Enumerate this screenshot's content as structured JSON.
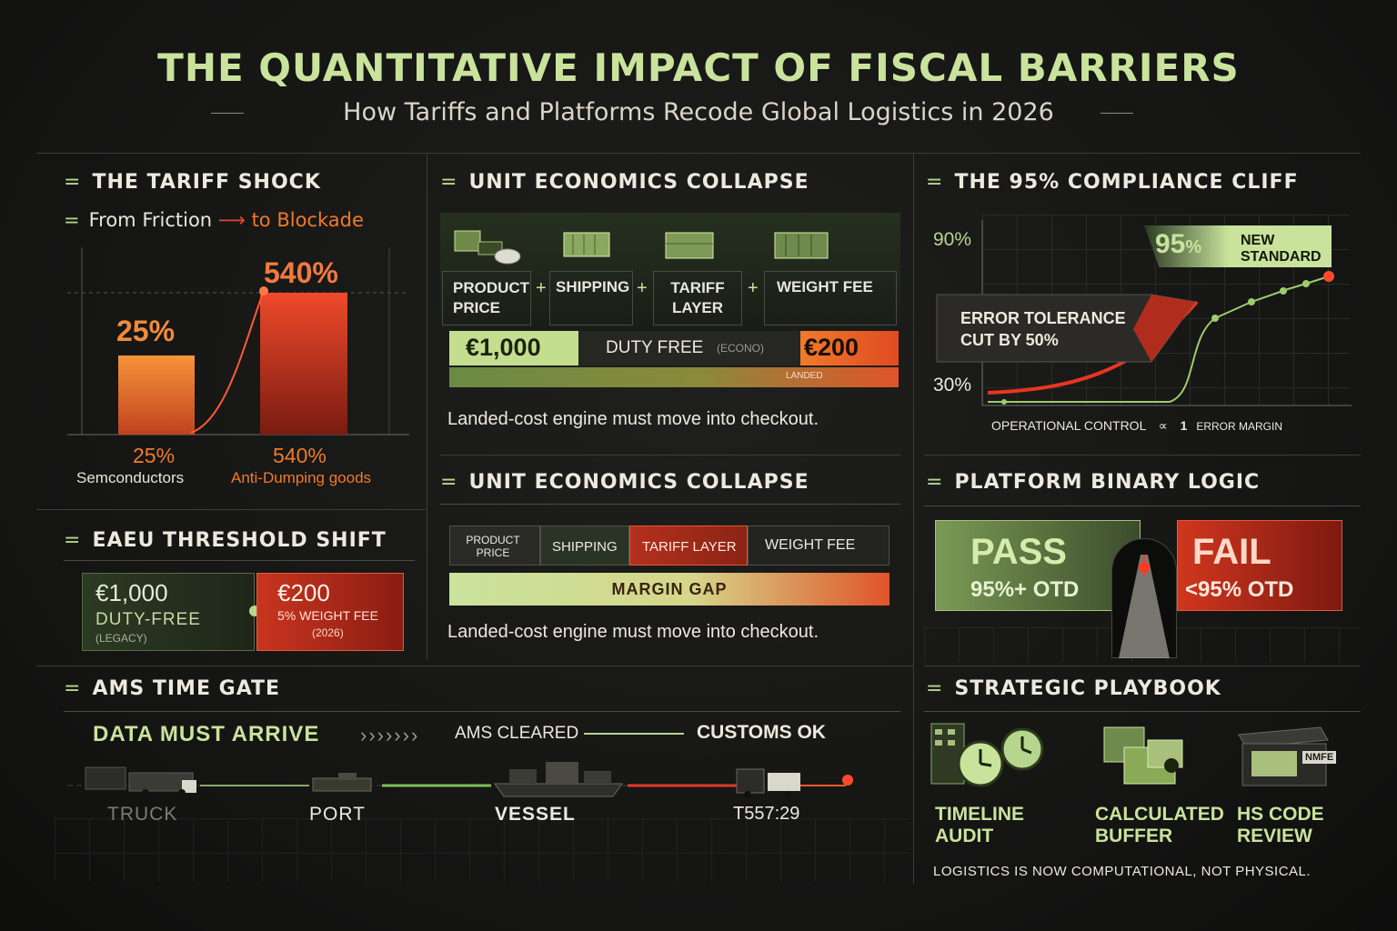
{
  "header": {
    "title": "THE QUANTITATIVE IMPACT OF FISCAL BARRIERS",
    "subtitle": "How Tariffs and Platforms Recode Global Logistics in 2026"
  },
  "tariff_shock": {
    "title": "THE TARIFF SHOCK",
    "subtitle_a": "From Friction",
    "subtitle_b": "to Blockade",
    "bar1_value": "25%",
    "bar2_value": "540%",
    "bar1_pct": 25,
    "bar2_pct": 540,
    "bar1_caption_value": "25%",
    "bar1_caption": "Semconductors",
    "bar2_caption_value": "540%",
    "bar2_caption": "Anti-Dumping goods"
  },
  "eaeu": {
    "title": "EAEU THRESHOLD SHIFT",
    "left_value": "€1,000",
    "left_label": "DUTY-FREE",
    "left_sub": "(LEGACY)",
    "right_value": "€200",
    "right_label": "5% WEIGHT FEE",
    "right_sub": "(2026)"
  },
  "unit_econ_1": {
    "title": "UNIT ECONOMICS COLLAPSE",
    "items": [
      "PRODUCT PRICE",
      "SHIPPING",
      "TARIFF LAYER",
      "WEIGHT FEE"
    ],
    "plus": "+",
    "left_value": "€1,000",
    "mid_label": "DUTY FREE",
    "mid_tag": "(ECONO)",
    "right_value": "€200",
    "bar_tag": "LANDED",
    "caption": "Landed-cost engine must move into checkout."
  },
  "unit_econ_2": {
    "title": "UNIT ECONOMICS COLLAPSE",
    "segments": [
      "PRODUCT PRICE",
      "SHIPPING",
      "TARIFF LAYER",
      "WEIGHT FEE"
    ],
    "gap_label": "MARGIN GAP",
    "caption": "Landed-cost engine must move into checkout."
  },
  "compliance": {
    "title": "THE 95% COMPLIANCE CLIFF",
    "y_top": "90%",
    "y_bottom": "30%",
    "marker_value": "95",
    "marker_unit": "%",
    "marker_label": "NEW STANDARD",
    "callout_line1": "ERROR TOLERANCE",
    "callout_line2": "CUT BY 50%",
    "xlabel_a": "OPERATIONAL CONTROL",
    "xlabel_sym": "∝",
    "xlabel_b": "1",
    "xlabel_c": "ERROR MARGIN"
  },
  "binary": {
    "title": "PLATFORM BINARY LOGIC",
    "pass_label": "PASS",
    "pass_sub": "95%+ OTD",
    "fail_label": "FAIL",
    "fail_sub": "<95% OTD"
  },
  "ams": {
    "title": "AMS TIME GATE",
    "data_label": "DATA MUST ARRIVE",
    "chevrons": "›››››››",
    "cleared_label": "AMS CLEARED",
    "customs_label": "CUSTOMS OK",
    "stops": [
      "TRUCK",
      "PORT",
      "VESSEL",
      "T557:29"
    ]
  },
  "playbook": {
    "title": "STRATEGIC PLAYBOOK",
    "items": [
      {
        "line1": "TIMELINE",
        "line2": "AUDIT"
      },
      {
        "line1": "CALCULATED",
        "line2": "BUFFER"
      },
      {
        "line1": "HS CODE",
        "line2": "REVIEW"
      }
    ],
    "box_tag": "NMFE",
    "footer": "LOGISTICS IS NOW COMPUTATIONAL, NOT PHYSICAL."
  },
  "colors": {
    "accent_green": "#b7d68d",
    "accent_red": "#e8452c",
    "accent_orange": "#f07a2a"
  }
}
